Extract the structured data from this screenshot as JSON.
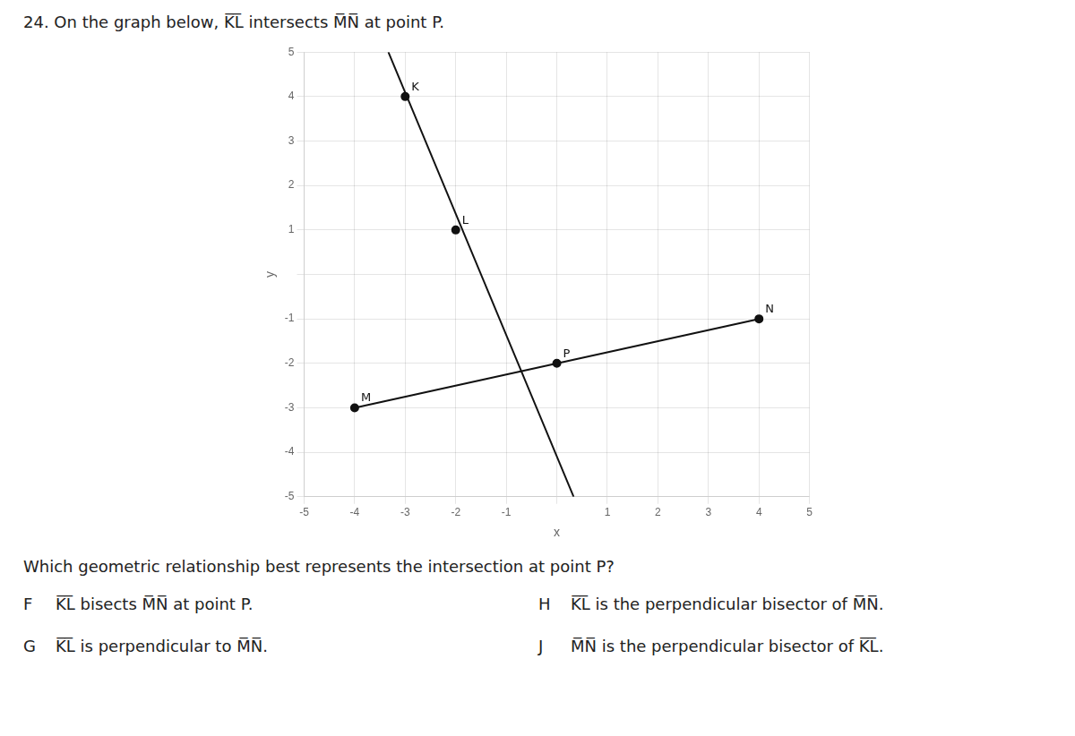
{
  "chart_data": {
    "type": "line",
    "title": "24. On the graph below, K̅L̅ intersects M̅N̅ at point P.",
    "x_label": "x",
    "y_label": "y",
    "xlim": [
      -5,
      5
    ],
    "ylim": [
      -5,
      5
    ],
    "xticks": [
      -5,
      -4,
      -3,
      -2,
      -1,
      {
        "value": 0,
        "label": null
      },
      1,
      2,
      3,
      4,
      5
    ],
    "yticks": [
      -5,
      -4,
      -3,
      -2,
      -1,
      {
        "value": 0,
        "label": null
      },
      1,
      2,
      3,
      4,
      5
    ],
    "grid": true,
    "series": [
      {
        "x": [
          -3.333,
          0.333
        ],
        "values": [
          5,
          -5
        ],
        "color": "#111111",
        "marker": "none",
        "line_style": "solid"
      },
      {
        "x": [
          -4,
          4
        ],
        "values": [
          -3,
          -1
        ],
        "color": "#111111",
        "marker": "none",
        "line_style": "solid"
      },
      {
        "type": "scatter",
        "labels": [
          "K",
          "L",
          "M",
          "N",
          "P"
        ],
        "x": [
          -3,
          -2,
          -4,
          4,
          0
        ],
        "values": [
          4,
          1,
          -3,
          -1,
          -2
        ],
        "color": "#111111",
        "marker": "circle"
      }
    ],
    "annotations": [
      "Which geometric relationship best represents the intersection at point P?",
      "F K̅L̅ bisects M̅N̅ at point P.",
      "H K̅L̅ is the perpendicular bisector of M̅N̅.",
      "G K̅L̅ is perpendicular to M̅N̅.",
      "J M̅N̅ is the perpendicular bisector of K̅L̅."
    ]
  }
}
